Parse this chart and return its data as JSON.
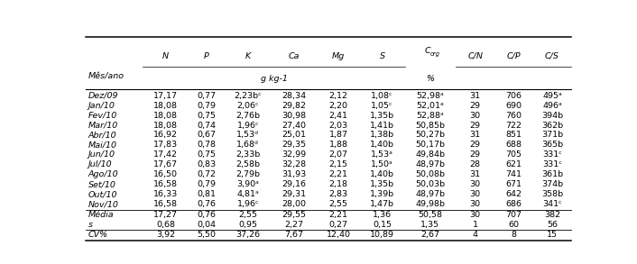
{
  "col_headers": [
    "Mês/ano",
    "N",
    "P",
    "K",
    "Ca",
    "Mg",
    "S",
    "C_org",
    "C/N",
    "C/P",
    "C/S"
  ],
  "rows": [
    [
      "Dez/09",
      "17,17",
      "0,77",
      "2,23bᶜ",
      "28,34",
      "2,12",
      "1,08ᶜ",
      "52,98ᵃ",
      "31",
      "706",
      "495ᵃ"
    ],
    [
      "Jan/10",
      "18,08",
      "0,79",
      "2,06ᶜ",
      "29,82",
      "2,20",
      "1,05ᶜ",
      "52,01ᵃ",
      "29",
      "690",
      "496ᵃ"
    ],
    [
      "Fev/10",
      "18,08",
      "0,75",
      "2,76b",
      "30,98",
      "2,41",
      "1,35b",
      "52,88ᵃ",
      "30",
      "760",
      "394b"
    ],
    [
      "Mar/10",
      "18,08",
      "0,74",
      "1,96ᶜ",
      "27,40",
      "2,03",
      "1,41b",
      "50,85b",
      "29",
      "722",
      "362b"
    ],
    [
      "Abr/10",
      "16,92",
      "0,67",
      "1,53ᵈ",
      "25,01",
      "1,87",
      "1,38b",
      "50,27b",
      "31",
      "851",
      "371b"
    ],
    [
      "Mai/10",
      "17,83",
      "0,78",
      "1,68ᵈ",
      "29,35",
      "1,88",
      "1,40b",
      "50,17b",
      "29",
      "688",
      "365b"
    ],
    [
      "Jun/10",
      "17,42",
      "0,75",
      "2,33b",
      "32,99",
      "2,07",
      "1,53ᵃ",
      "49,84b",
      "29",
      "705",
      "331ᶜ"
    ],
    [
      "Jul/10",
      "17,67",
      "0,83",
      "2,58b",
      "32,28",
      "2,15",
      "1,50ᵃ",
      "48,97b",
      "28",
      "621",
      "331ᶜ"
    ],
    [
      "Ago/10",
      "16,50",
      "0,72",
      "2,79b",
      "31,93",
      "2,21",
      "1,40b",
      "50,08b",
      "31",
      "741",
      "361b"
    ],
    [
      "Set/10",
      "16,58",
      "0,79",
      "3,90ᵃ",
      "29,16",
      "2,18",
      "1,35b",
      "50,03b",
      "30",
      "671",
      "374b"
    ],
    [
      "Out/10",
      "16,33",
      "0,81",
      "4,81ᵃ",
      "29,31",
      "2,83",
      "1,39b",
      "48,97b",
      "30",
      "642",
      "358b"
    ],
    [
      "Nov/10",
      "16,58",
      "0,76",
      "1,96ᶜ",
      "28,00",
      "2,55",
      "1,47b",
      "49,98b",
      "30",
      "686",
      "341ᶜ"
    ]
  ],
  "footer_rows": [
    [
      "Média",
      "17,27",
      "0,76",
      "2,55",
      "29,55",
      "2,21",
      "1,36",
      "50,58",
      "30",
      "707",
      "382"
    ],
    [
      "s",
      "0,68",
      "0,04",
      "0,95",
      "2,27",
      "0,27",
      "0,15",
      "1,35",
      "1",
      "60",
      "56"
    ],
    [
      "CV%",
      "3,92",
      "5,50",
      "37,26",
      "7,67",
      "12,40",
      "10,89",
      "2,67",
      "4",
      "8",
      "15"
    ]
  ],
  "font_size": 6.8,
  "bg_color": "#ffffff",
  "text_color": "#000000"
}
